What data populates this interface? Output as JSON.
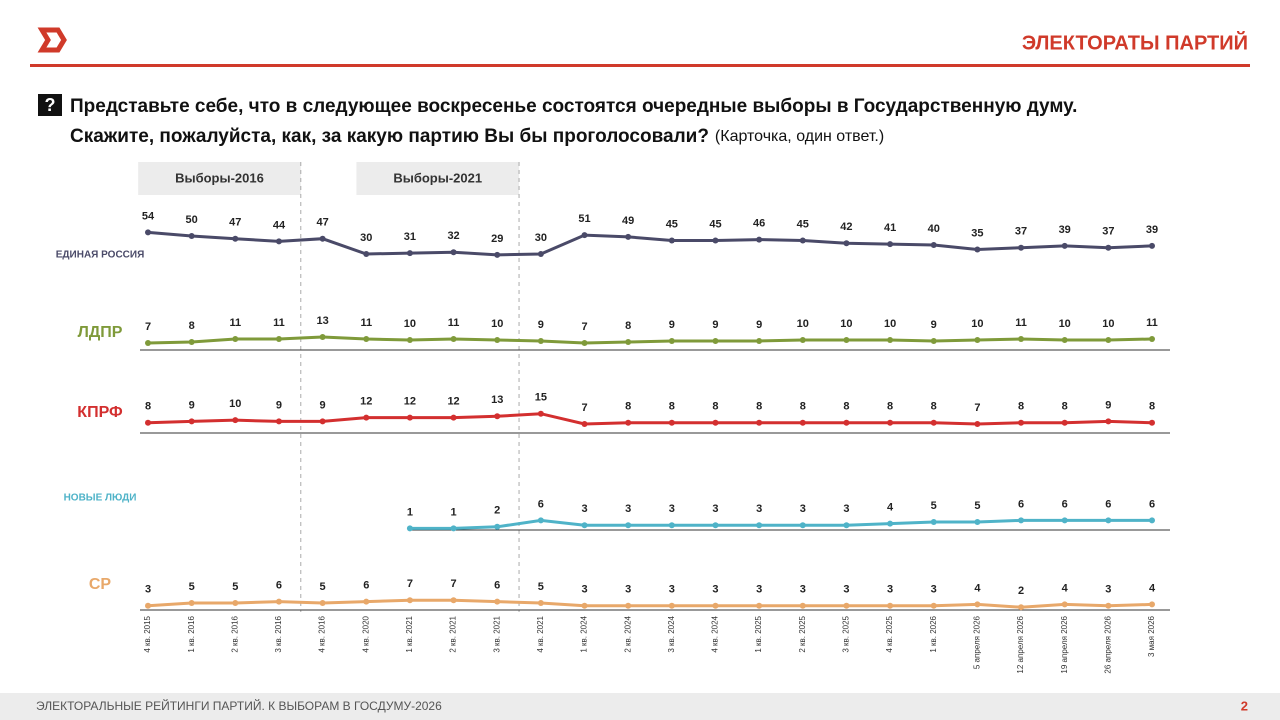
{
  "header": {
    "title": "ЭЛЕКТОРАТЫ ПАРТИЙ"
  },
  "question": {
    "mark": "?",
    "line1": "Представьте себе, что в следующее воскресенье состоятся очередные выборы в Государственную думу.",
    "line2": "Скажите, пожалуйста, как, за какую партию Вы бы проголосовали?",
    "note": "(Карточка, один ответ.)"
  },
  "chart_data": {
    "type": "line",
    "annotations": [
      {
        "label": "Выборы-2016",
        "from": 0,
        "to": 3
      },
      {
        "label": "Выборы-2021",
        "from": 5,
        "to": 8
      }
    ],
    "categories": [
      "4 кв. 2015",
      "1 кв. 2016",
      "2 кв. 2016",
      "3 кв. 2016",
      "4 кв. 2016",
      "4 кв. 2020",
      "1 кв. 2021",
      "2 кв. 2021",
      "3 кв. 2021",
      "4 кв. 2021",
      "1 кв. 2024",
      "2 кв. 2024",
      "3 кв. 2024",
      "4 кв. 2024",
      "1 кв. 2025",
      "2 кв. 2025",
      "3 кв. 2025",
      "4 кв. 2025",
      "1 кв. 2026",
      "5 апреля 2026",
      "12 апреля 2026",
      "19 апреля 2026",
      "26 апреля 2026",
      "3 мая 2026"
    ],
    "series": [
      {
        "name": "ЕДИНАЯ РОССИЯ",
        "color": "#4a4a68",
        "ylim": [
          0,
          100
        ],
        "values": [
          54,
          50,
          47,
          44,
          47,
          30,
          31,
          32,
          29,
          30,
          51,
          49,
          45,
          45,
          46,
          45,
          42,
          41,
          40,
          35,
          37,
          39,
          37,
          39
        ]
      },
      {
        "name": "ЛДПР",
        "color": "#7f9a3a",
        "ylim": [
          0,
          100
        ],
        "values": [
          7,
          8,
          11,
          11,
          13,
          11,
          10,
          11,
          10,
          9,
          7,
          8,
          9,
          9,
          9,
          10,
          10,
          10,
          9,
          10,
          11,
          10,
          10,
          11
        ]
      },
      {
        "name": "КПРФ",
        "color": "#d32f2f",
        "ylim": [
          0,
          70
        ],
        "values": [
          8,
          9,
          10,
          9,
          9,
          12,
          12,
          12,
          13,
          15,
          7,
          8,
          8,
          8,
          8,
          8,
          8,
          8,
          8,
          7,
          8,
          8,
          9,
          8
        ]
      },
      {
        "name": "НОВЫЕ ЛЮДИ",
        "color": "#4fb3c8",
        "ylim": [
          0,
          60
        ],
        "values": [
          null,
          null,
          null,
          null,
          null,
          null,
          1,
          1,
          2,
          6,
          3,
          3,
          3,
          3,
          3,
          3,
          3,
          4,
          5,
          5,
          6,
          6,
          6,
          6
        ]
      },
      {
        "name": "СР",
        "color": "#e8a86a",
        "ylim": [
          0,
          60
        ],
        "values": [
          3,
          5,
          5,
          6,
          5,
          6,
          7,
          7,
          6,
          5,
          3,
          3,
          3,
          3,
          3,
          3,
          3,
          3,
          3,
          4,
          2,
          4,
          3,
          4
        ]
      }
    ]
  },
  "footer": {
    "text": "ЭЛЕКТОРАЛЬНЫЕ РЕЙТИНГИ ПАРТИЙ. К ВЫБОРАМ В ГОСДУМУ-2026",
    "page": "2"
  }
}
